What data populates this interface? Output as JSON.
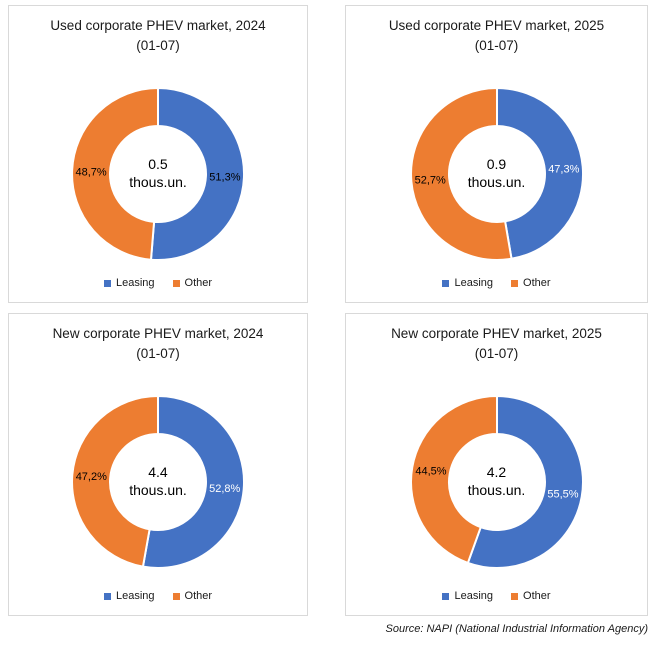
{
  "page": {
    "source_note": "Source: NAPI (National Industrial Information Agency)"
  },
  "legend": {
    "leasing": "Leasing",
    "other": "Other"
  },
  "colors": {
    "leasing": "#4472C4",
    "other": "#ED7D31",
    "panel_border": "#D9D9D9",
    "background": "#FFFFFF"
  },
  "chart_data": [
    {
      "type": "pie",
      "subtype": "donut",
      "title_line1": "Used corporate PHEV market, 2024",
      "title_line2": "(01-07)",
      "center_value": "0.5",
      "center_unit": "thous.un.",
      "legend_entries": [
        "Leasing",
        "Other"
      ],
      "segments": [
        {
          "name": "Leasing",
          "value_pct": 51.3,
          "label": "51,3%",
          "color": "#4472C4",
          "label_color": "#000000"
        },
        {
          "name": "Other",
          "value_pct": 48.7,
          "label": "48,7%",
          "color": "#ED7D31",
          "label_color": "#000000"
        }
      ]
    },
    {
      "type": "pie",
      "subtype": "donut",
      "title_line1": "Used corporate PHEV market, 2025",
      "title_line2": "(01-07)",
      "center_value": "0.9",
      "center_unit": "thous.un.",
      "legend_entries": [
        "Leasing",
        "Other"
      ],
      "segments": [
        {
          "name": "Leasing",
          "value_pct": 47.3,
          "label": "47,3%",
          "color": "#4472C4",
          "label_color": "#FFFFFF"
        },
        {
          "name": "Other",
          "value_pct": 52.7,
          "label": "52,7%",
          "color": "#ED7D31",
          "label_color": "#000000"
        }
      ]
    },
    {
      "type": "pie",
      "subtype": "donut",
      "title_line1": "New corporate PHEV market, 2024",
      "title_line2": "(01-07)",
      "center_value": "4.4",
      "center_unit": "thous.un.",
      "legend_entries": [
        "Leasing",
        "Other"
      ],
      "segments": [
        {
          "name": "Leasing",
          "value_pct": 52.8,
          "label": "52,8%",
          "color": "#4472C4",
          "label_color": "#FFFFFF"
        },
        {
          "name": "Other",
          "value_pct": 47.2,
          "label": "47,2%",
          "color": "#ED7D31",
          "label_color": "#000000"
        }
      ]
    },
    {
      "type": "pie",
      "subtype": "donut",
      "title_line1": "New corporate PHEV market, 2025",
      "title_line2": "(01-07)",
      "center_value": "4.2",
      "center_unit": "thous.un.",
      "legend_entries": [
        "Leasing",
        "Other"
      ],
      "segments": [
        {
          "name": "Leasing",
          "value_pct": 55.5,
          "label": "55,5%",
          "color": "#4472C4",
          "label_color": "#FFFFFF"
        },
        {
          "name": "Other",
          "value_pct": 44.5,
          "label": "44,5%",
          "color": "#ED7D31",
          "label_color": "#000000"
        }
      ]
    }
  ]
}
